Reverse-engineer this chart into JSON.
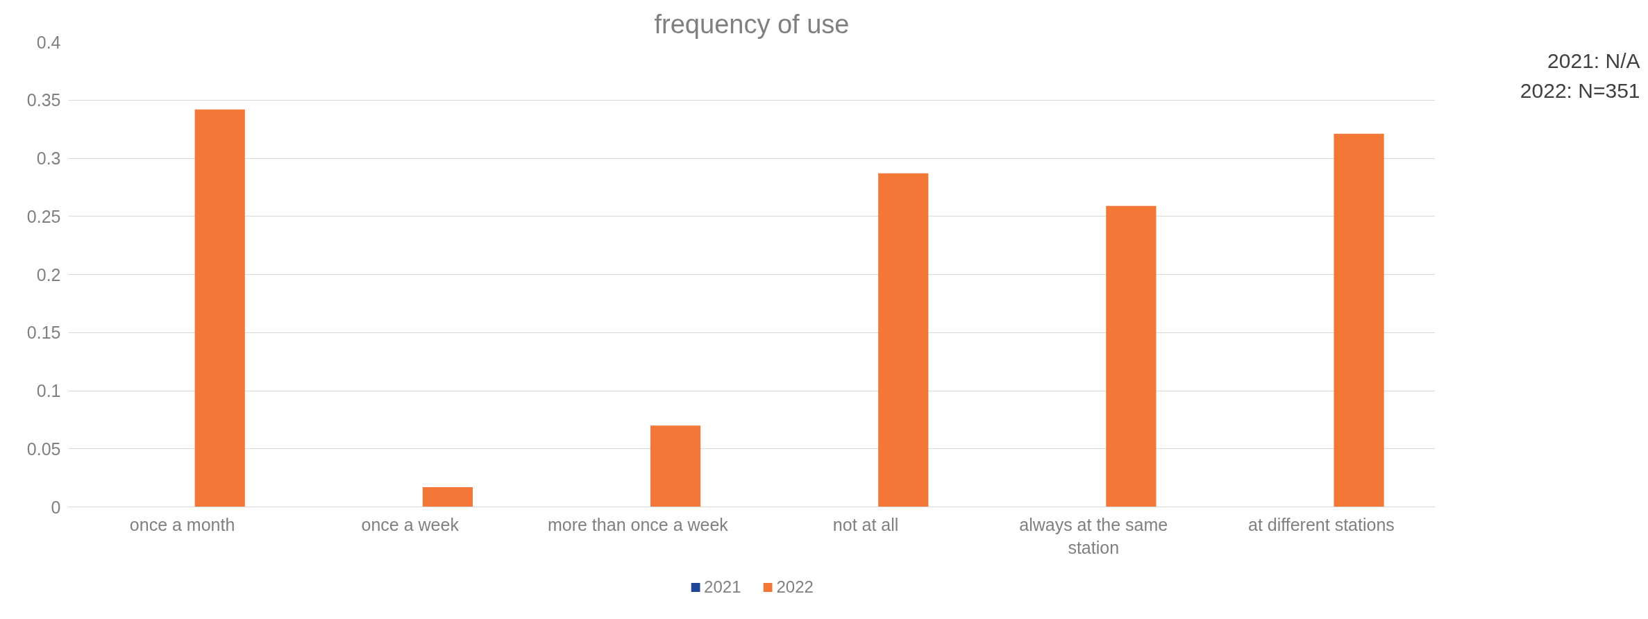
{
  "chart_data": {
    "type": "bar",
    "title": "frequency of use",
    "categories": [
      "once a month",
      "once a week",
      "more than once a week",
      "not at all",
      "always at the same station",
      "at different stations"
    ],
    "series": [
      {
        "name": "2021",
        "color": "#1f4597",
        "values": [
          null,
          null,
          null,
          null,
          null,
          null
        ]
      },
      {
        "name": "2022",
        "color": "#f37736",
        "values": [
          0.342,
          0.017,
          0.07,
          0.287,
          0.259,
          0.321
        ]
      }
    ],
    "ylim": [
      0,
      0.4
    ],
    "yticks": [
      0,
      0.05,
      0.1,
      0.15,
      0.2,
      0.25,
      0.3,
      0.35,
      0.4
    ],
    "grid": "y",
    "legend": "bottom",
    "annotations": [
      "2021: N/A",
      "2022: N=351"
    ]
  }
}
